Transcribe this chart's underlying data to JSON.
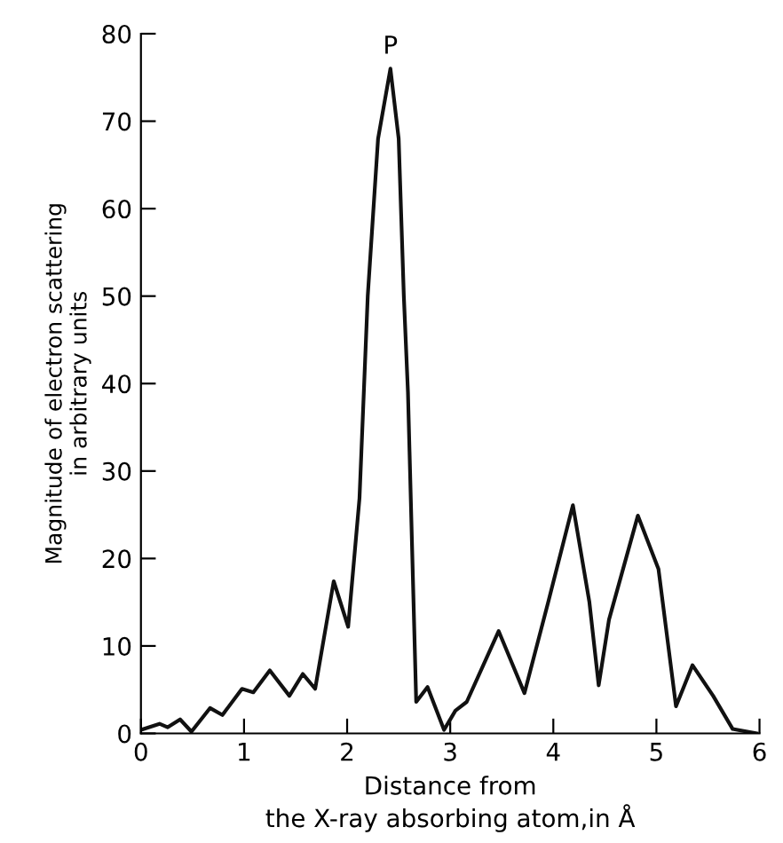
{
  "chart_data": {
    "type": "line",
    "xlabel": "Distance from\nthe X-ray absorbing atom,in Å",
    "ylabel": "Magnitude of electron scattering\nin arbitrary units",
    "annotations": [
      {
        "text": "P",
        "x": 2.42,
        "y": 76
      }
    ],
    "x": [
      0,
      0.18,
      0.26,
      0.38,
      0.49,
      0.67,
      0.79,
      0.98,
      1.09,
      1.25,
      1.44,
      1.57,
      1.69,
      1.87,
      2.01,
      2.12,
      2.2,
      2.3,
      2.42,
      2.5,
      2.55,
      2.59,
      2.67,
      2.78,
      2.94,
      3.05,
      3.16,
      3.47,
      3.72,
      3.95,
      4.19,
      4.35,
      4.44,
      4.54,
      4.82,
      5.02,
      5.19,
      5.35,
      5.55,
      5.74,
      5.97
    ],
    "series": [
      {
        "color": "#111111",
        "values": [
          0.4,
          1.1,
          0.7,
          1.6,
          0.2,
          2.9,
          2.1,
          5.1,
          4.7,
          7.2,
          4.3,
          6.8,
          5.1,
          17.4,
          12.2,
          26.9,
          50,
          68,
          76,
          68,
          50,
          39,
          3.6,
          5.3,
          0.4,
          2.6,
          3.6,
          11.7,
          4.6,
          15,
          26.1,
          15,
          5.5,
          13,
          24.9,
          18.8,
          3.1,
          7.8,
          4.3,
          0.5,
          0
        ]
      }
    ],
    "xlim": [
      0,
      6
    ],
    "ylim": [
      0,
      80
    ],
    "xticks": [
      0,
      1,
      2,
      3,
      4,
      5,
      6
    ],
    "yticks": [
      0,
      10,
      20,
      30,
      40,
      50,
      60,
      70,
      80
    ],
    "grid": false,
    "legend": false,
    "marker": "none",
    "line_style": "solid"
  }
}
